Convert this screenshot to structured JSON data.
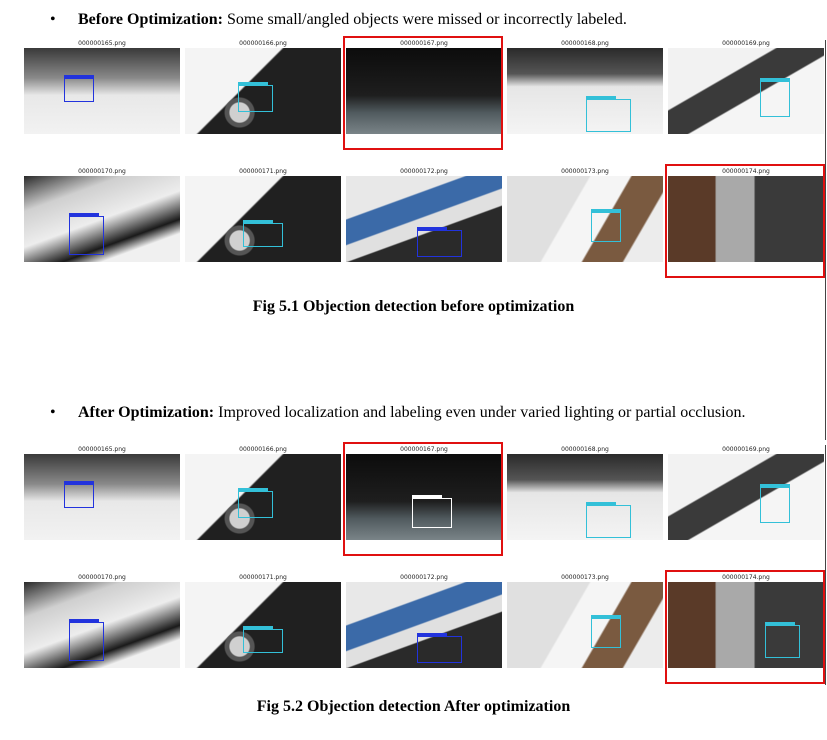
{
  "section_before": {
    "bullet": "•",
    "heading": "Before Optimization:",
    "text": " Some small/angled objects were missed or incorrectly labeled."
  },
  "section_after": {
    "bullet": "•",
    "heading": "After Optimization:",
    "text": " Improved localization and labeling even under varied lighting or partial occlusion."
  },
  "figure_before": {
    "caption": "Fig 5.1 Objection detection before optimization",
    "tiles": [
      {
        "file": "000000165.png",
        "scene": "gray-factory",
        "box_color": "#2233dd",
        "highlight": false
      },
      {
        "file": "000000166.png",
        "scene": "dark-machine",
        "box_color": "#33c0d8",
        "highlight": false
      },
      {
        "file": "000000167.png",
        "scene": "dark-room",
        "box_color": "",
        "highlight": true
      },
      {
        "file": "000000168.png",
        "scene": "bright-room",
        "box_color": "#33c0d8",
        "highlight": false
      },
      {
        "file": "000000169.png",
        "scene": "bright-arm",
        "box_color": "#33c0d8",
        "highlight": false
      },
      {
        "file": "000000170.png",
        "scene": "white-arm",
        "box_color": "#2233dd",
        "highlight": false
      },
      {
        "file": "000000171.png",
        "scene": "dark-machine",
        "box_color": "#33c0d8",
        "highlight": false
      },
      {
        "file": "000000172.png",
        "scene": "can-yellow",
        "box_color": "#2233dd",
        "highlight": false
      },
      {
        "file": "000000173.png",
        "scene": "white-hand",
        "box_color": "#33c0d8",
        "highlight": false
      },
      {
        "file": "000000174.png",
        "scene": "brown-room",
        "box_color": "",
        "highlight": true
      }
    ]
  },
  "figure_after": {
    "caption": "Fig 5.2 Objection detection After optimization",
    "tiles": [
      {
        "file": "000000165.png",
        "scene": "gray-factory",
        "box_color": "#2233dd",
        "highlight": false
      },
      {
        "file": "000000166.png",
        "scene": "dark-machine",
        "box_color": "#33c0d8",
        "highlight": false
      },
      {
        "file": "000000167.png",
        "scene": "dark-room",
        "box_color": "#ffffff",
        "highlight": true
      },
      {
        "file": "000000168.png",
        "scene": "bright-room",
        "box_color": "#33c0d8",
        "highlight": false
      },
      {
        "file": "000000169.png",
        "scene": "bright-arm",
        "box_color": "#33c0d8",
        "highlight": false
      },
      {
        "file": "000000170.png",
        "scene": "white-arm",
        "box_color": "#2233dd",
        "highlight": false
      },
      {
        "file": "000000171.png",
        "scene": "dark-machine",
        "box_color": "#33c0d8",
        "highlight": false
      },
      {
        "file": "000000172.png",
        "scene": "can-yellow",
        "box_color": "#2233dd",
        "highlight": false
      },
      {
        "file": "000000173.png",
        "scene": "white-hand",
        "box_color": "#33c0d8",
        "highlight": false
      },
      {
        "file": "000000174.png",
        "scene": "brown-room",
        "box_color": "#33c0d8",
        "highlight": true
      }
    ]
  },
  "colors": {
    "highlight": "#e01010"
  }
}
